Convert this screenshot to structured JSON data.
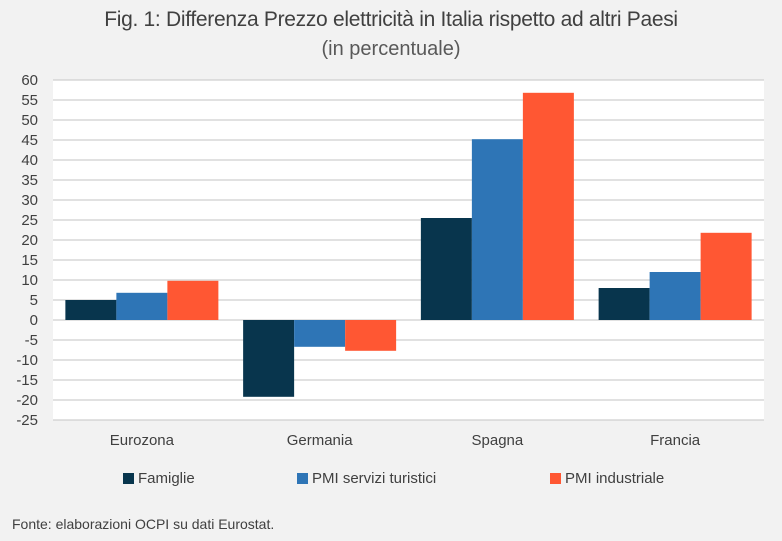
{
  "header": {
    "title": "Fig. 1: Differenza Prezzo elettricità in Italia rispetto ad altri Paesi",
    "subtitle": "(in percentuale)"
  },
  "footer": {
    "source": "Fonte: elaborazioni OCPI su dati Eurostat."
  },
  "chart_data": {
    "type": "bar",
    "title": "Fig. 1: Differenza Prezzo elettricità in Italia rispetto ad altri Paesi",
    "subtitle": "(in percentuale)",
    "xlabel": "",
    "ylabel": "",
    "categories": [
      "Eurozona",
      "Germania",
      "Spagna",
      "Francia"
    ],
    "series": [
      {
        "name": "Famiglie",
        "color": "#08354d",
        "values": [
          5.0,
          -19.2,
          25.5,
          8.0
        ]
      },
      {
        "name": "PMI servizi turistici",
        "color": "#2e75b6",
        "values": [
          6.8,
          -6.7,
          45.2,
          12.0
        ]
      },
      {
        "name": "PMI industriale",
        "color": "#ff5733",
        "values": [
          9.8,
          -7.7,
          56.8,
          21.8
        ]
      }
    ],
    "ylim": [
      -25,
      60
    ],
    "yticks": [
      60,
      55,
      50,
      45,
      40,
      35,
      30,
      25,
      20,
      15,
      10,
      5,
      0,
      -5,
      -10,
      -15,
      -20,
      -25
    ],
    "grid": true,
    "legend_position": "bottom",
    "source": "Fonte: elaborazioni OCPI su dati Eurostat."
  }
}
